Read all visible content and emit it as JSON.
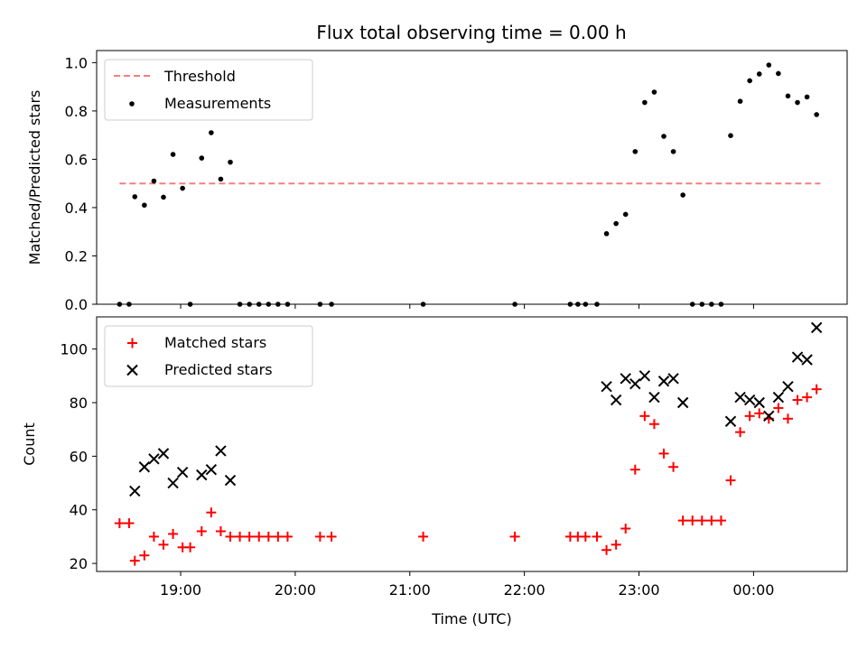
{
  "title": "Flux total observing time = 0.00 h",
  "chart_data": [
    {
      "type": "scatter",
      "ylabel": "Matched/Predicted stars",
      "xlim": [
        "18:16",
        "00:49"
      ],
      "ylim": [
        0,
        1.05
      ],
      "y_ticks": [
        "0.0",
        "0.2",
        "0.4",
        "0.6",
        "0.8",
        "1.0"
      ],
      "legend": {
        "position": "upper-left",
        "entries": [
          "Threshold",
          "Measurements"
        ]
      },
      "threshold": {
        "name": "Threshold",
        "value": 0.5,
        "x_start": "18:28",
        "x_end": "00:35",
        "color": "#f08080",
        "style": "dashed"
      },
      "series": [
        {
          "name": "Measurements",
          "color": "#000000",
          "points": [
            [
              "18:28",
              0.0
            ],
            [
              "18:33",
              0.0
            ],
            [
              "18:36",
              0.445
            ],
            [
              "18:41",
              0.41
            ],
            [
              "18:46",
              0.51
            ],
            [
              "18:51",
              0.443
            ],
            [
              "18:56",
              0.62
            ],
            [
              "19:01",
              0.48
            ],
            [
              "19:05",
              0.0
            ],
            [
              "19:11",
              0.605
            ],
            [
              "19:16",
              0.71
            ],
            [
              "19:21",
              0.518
            ],
            [
              "19:26",
              0.588
            ],
            [
              "19:31",
              0.0
            ],
            [
              "19:36",
              0.0
            ],
            [
              "19:41",
              0.0
            ],
            [
              "19:46",
              0.0
            ],
            [
              "19:51",
              0.0
            ],
            [
              "19:56",
              0.0
            ],
            [
              "20:13",
              0.0
            ],
            [
              "20:19",
              0.0
            ],
            [
              "21:07",
              0.0
            ],
            [
              "21:55",
              0.0
            ],
            [
              "22:24",
              0.0
            ],
            [
              "22:28",
              0.0
            ],
            [
              "22:32",
              0.0
            ],
            [
              "22:38",
              0.0
            ],
            [
              "22:43",
              0.292
            ],
            [
              "22:48",
              0.334
            ],
            [
              "22:53",
              0.372
            ],
            [
              "22:58",
              0.632
            ],
            [
              "23:03",
              0.835
            ],
            [
              "23:08",
              0.878
            ],
            [
              "23:13",
              0.695
            ],
            [
              "23:18",
              0.632
            ],
            [
              "23:23",
              0.452
            ],
            [
              "23:28",
              0.0
            ],
            [
              "23:33",
              0.0
            ],
            [
              "23:38",
              0.0
            ],
            [
              "23:43",
              0.0
            ],
            [
              "23:48",
              0.698
            ],
            [
              "23:53",
              0.84
            ],
            [
              "23:58",
              0.925
            ],
            [
              "00:03",
              0.953
            ],
            [
              "00:08",
              0.99
            ],
            [
              "00:13",
              0.955
            ],
            [
              "00:18",
              0.862
            ],
            [
              "00:23",
              0.835
            ],
            [
              "00:28",
              0.858
            ],
            [
              "00:33",
              0.785
            ]
          ]
        }
      ]
    },
    {
      "type": "scatter",
      "xlabel": "Time (UTC)",
      "ylabel": "Count",
      "xlim": [
        "18:16",
        "00:49"
      ],
      "ylim": [
        17,
        112
      ],
      "y_ticks": [
        "20",
        "40",
        "60",
        "80",
        "100"
      ],
      "x_ticks": [
        "19:00",
        "20:00",
        "21:00",
        "22:00",
        "23:00",
        "00:00"
      ],
      "legend": {
        "position": "upper-left",
        "entries": [
          "Matched stars",
          "Predicted stars"
        ]
      },
      "series": [
        {
          "name": "Matched stars",
          "marker": "plus",
          "color": "#ff0000",
          "points": [
            [
              "18:28",
              35
            ],
            [
              "18:33",
              35
            ],
            [
              "18:36",
              21
            ],
            [
              "18:41",
              23
            ],
            [
              "18:46",
              30
            ],
            [
              "18:51",
              27
            ],
            [
              "18:56",
              31
            ],
            [
              "19:01",
              26
            ],
            [
              "19:05",
              26
            ],
            [
              "19:11",
              32
            ],
            [
              "19:16",
              39
            ],
            [
              "19:21",
              32
            ],
            [
              "19:26",
              30
            ],
            [
              "19:31",
              30
            ],
            [
              "19:36",
              30
            ],
            [
              "19:41",
              30
            ],
            [
              "19:46",
              30
            ],
            [
              "19:51",
              30
            ],
            [
              "19:56",
              30
            ],
            [
              "20:13",
              30
            ],
            [
              "20:19",
              30
            ],
            [
              "21:07",
              30
            ],
            [
              "21:55",
              30
            ],
            [
              "22:24",
              30
            ],
            [
              "22:28",
              30
            ],
            [
              "22:32",
              30
            ],
            [
              "22:38",
              30
            ],
            [
              "22:43",
              25
            ],
            [
              "22:48",
              27
            ],
            [
              "22:53",
              33
            ],
            [
              "22:58",
              55
            ],
            [
              "23:03",
              75
            ],
            [
              "23:08",
              72
            ],
            [
              "23:13",
              61
            ],
            [
              "23:18",
              56
            ],
            [
              "23:23",
              36
            ],
            [
              "23:28",
              36
            ],
            [
              "23:33",
              36
            ],
            [
              "23:38",
              36
            ],
            [
              "23:43",
              36
            ],
            [
              "23:48",
              51
            ],
            [
              "23:53",
              69
            ],
            [
              "23:58",
              75
            ],
            [
              "00:03",
              76
            ],
            [
              "00:08",
              74
            ],
            [
              "00:13",
              78
            ],
            [
              "00:18",
              74
            ],
            [
              "00:23",
              81
            ],
            [
              "00:28",
              82
            ],
            [
              "00:33",
              85
            ]
          ]
        },
        {
          "name": "Predicted stars",
          "marker": "x",
          "color": "#000000",
          "points": [
            [
              "18:36",
              47
            ],
            [
              "18:41",
              56
            ],
            [
              "18:46",
              59
            ],
            [
              "18:51",
              61
            ],
            [
              "18:56",
              50
            ],
            [
              "19:01",
              54
            ],
            [
              "19:11",
              53
            ],
            [
              "19:16",
              55
            ],
            [
              "19:21",
              62
            ],
            [
              "19:26",
              51
            ],
            [
              "22:43",
              86
            ],
            [
              "22:48",
              81
            ],
            [
              "22:53",
              89
            ],
            [
              "22:58",
              87
            ],
            [
              "23:03",
              90
            ],
            [
              "23:08",
              82
            ],
            [
              "23:13",
              88
            ],
            [
              "23:18",
              89
            ],
            [
              "23:23",
              80
            ],
            [
              "23:48",
              73
            ],
            [
              "23:53",
              82
            ],
            [
              "23:58",
              81
            ],
            [
              "00:03",
              80
            ],
            [
              "00:08",
              75
            ],
            [
              "00:13",
              82
            ],
            [
              "00:18",
              86
            ],
            [
              "00:23",
              97
            ],
            [
              "00:28",
              96
            ],
            [
              "00:33",
              108
            ]
          ]
        }
      ]
    }
  ]
}
